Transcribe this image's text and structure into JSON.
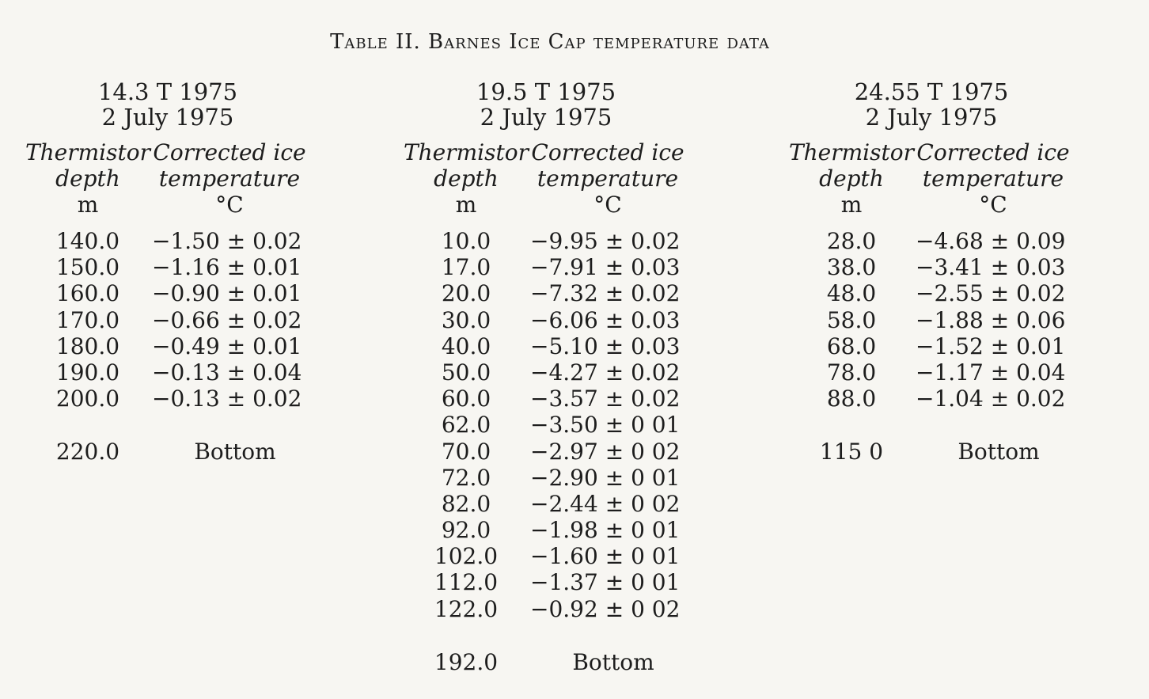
{
  "title": "Table II. Barnes Ice Cap temperature data",
  "columns": [
    {
      "hole": "14.3 T 1975",
      "date": "2 July 1975",
      "depth_header": [
        "Thermistor",
        "depth",
        "m"
      ],
      "temp_header": [
        "Corrected ice",
        "temperature",
        "°C"
      ],
      "rows": [
        {
          "depth": "140.0",
          "temp": "−1.50 ± 0.02"
        },
        {
          "depth": "150.0",
          "temp": "−1.16 ± 0.01"
        },
        {
          "depth": "160.0",
          "temp": "−0.90 ± 0.01"
        },
        {
          "depth": "170.0",
          "temp": "−0.66 ± 0.02"
        },
        {
          "depth": "180.0",
          "temp": "−0.49 ± 0.01"
        },
        {
          "depth": "190.0",
          "temp": "−0.13 ± 0.04"
        },
        {
          "depth": "200.0",
          "temp": "−0.13 ± 0.02"
        }
      ],
      "bottom_depth": "220.0",
      "bottom_label": "Bottom"
    },
    {
      "hole": "19.5 T 1975",
      "date": "2 July 1975",
      "depth_header": [
        "Thermistor",
        "depth",
        "m"
      ],
      "temp_header": [
        "Corrected ice",
        "temperature",
        "°C"
      ],
      "rows": [
        {
          "depth": "10.0",
          "temp": "−9.95 ± 0.02"
        },
        {
          "depth": "17.0",
          "temp": "−7.91 ± 0.03"
        },
        {
          "depth": "20.0",
          "temp": "−7.32 ± 0.02"
        },
        {
          "depth": "30.0",
          "temp": "−6.06 ± 0.03"
        },
        {
          "depth": "40.0",
          "temp": "−5.10 ± 0.03"
        },
        {
          "depth": "50.0",
          "temp": "−4.27 ± 0.02"
        },
        {
          "depth": "60.0",
          "temp": "−3.57 ± 0.02"
        },
        {
          "depth": "62.0",
          "temp": "−3.50 ± 0 01"
        },
        {
          "depth": "70.0",
          "temp": "−2.97 ± 0 02"
        },
        {
          "depth": "72.0",
          "temp": "−2.90 ± 0 01"
        },
        {
          "depth": "82.0",
          "temp": "−2.44 ± 0 02"
        },
        {
          "depth": "92.0",
          "temp": "−1.98 ± 0 01"
        },
        {
          "depth": "102.0",
          "temp": "−1.60 ± 0 01"
        },
        {
          "depth": "112.0",
          "temp": "−1.37 ± 0 01"
        },
        {
          "depth": "122.0",
          "temp": "−0.92 ± 0 02"
        }
      ],
      "bottom_depth": "192.0",
      "bottom_label": "Bottom"
    },
    {
      "hole": "24.55 T 1975",
      "date": "2 July 1975",
      "depth_header": [
        "Thermistor",
        "depth",
        "m"
      ],
      "temp_header": [
        "Corrected ice",
        "temperature",
        "°C"
      ],
      "rows": [
        {
          "depth": "28.0",
          "temp": "−4.68 ± 0.09"
        },
        {
          "depth": "38.0",
          "temp": "−3.41 ± 0.03"
        },
        {
          "depth": "48.0",
          "temp": "−2.55 ± 0.02"
        },
        {
          "depth": "58.0",
          "temp": "−1.88 ± 0.06"
        },
        {
          "depth": "68.0",
          "temp": "−1.52 ± 0.01"
        },
        {
          "depth": "78.0",
          "temp": "−1.17 ± 0.04"
        },
        {
          "depth": "88.0",
          "temp": "−1.04 ± 0.02"
        }
      ],
      "bottom_depth": "115 0",
      "bottom_label": "Bottom"
    }
  ]
}
